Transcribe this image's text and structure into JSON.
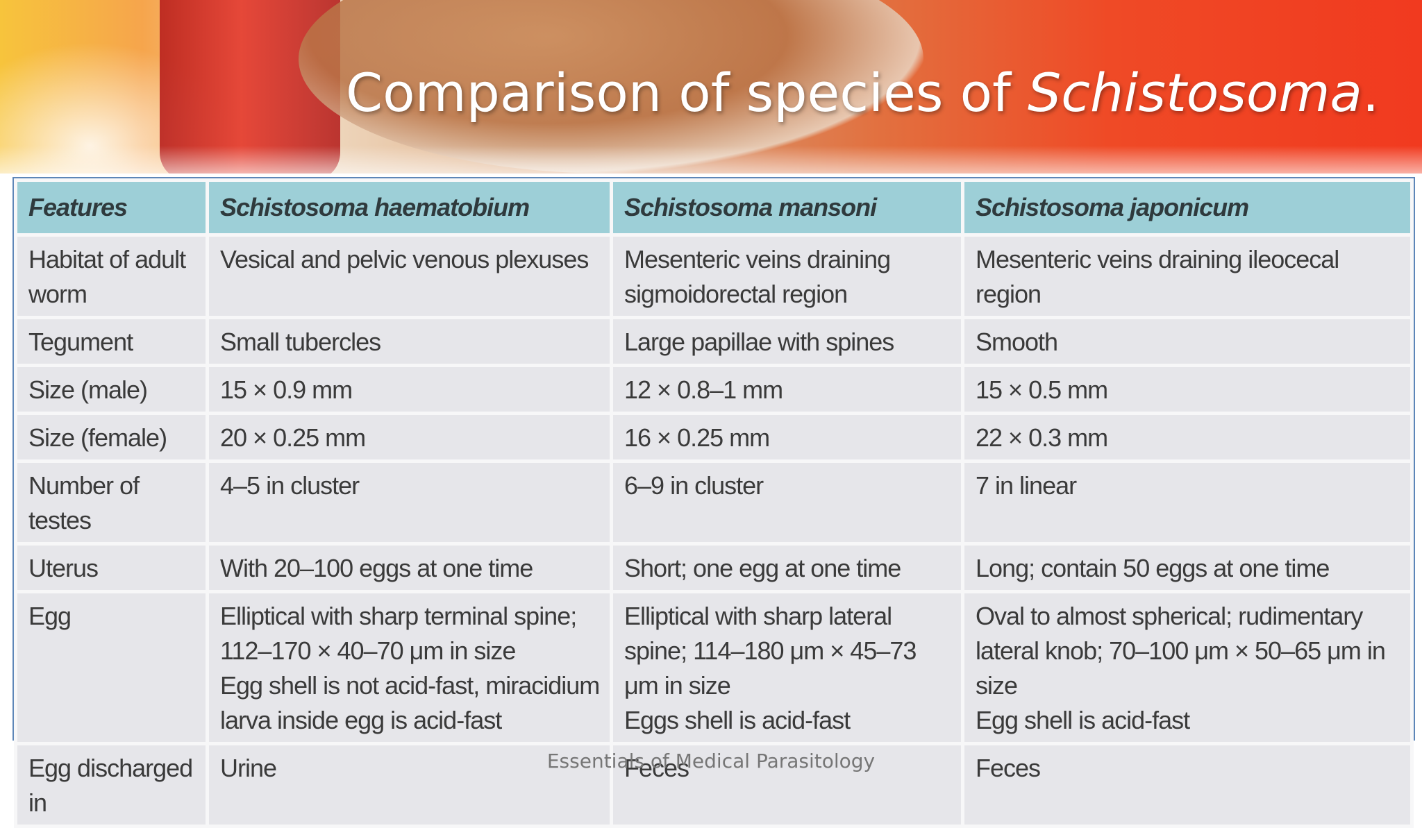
{
  "slide": {
    "title_prefix": "Comparison of species of ",
    "title_genus": "Schistosoma",
    "title_suffix": "."
  },
  "table": {
    "headers": [
      "Features",
      "Schistosoma haematobium",
      "Schistosoma mansoni",
      "Schistosoma japonicum"
    ],
    "rows": [
      {
        "feature": "Habitat of adult worm",
        "haematobium": [
          "Vesical and pelvic venous plexuses"
        ],
        "mansoni": [
          "Mesenteric veins draining sigmoidorectal region"
        ],
        "japonicum": [
          "Mesenteric veins draining ileocecal region"
        ]
      },
      {
        "feature": "Tegument",
        "haematobium": [
          "Small tubercles"
        ],
        "mansoni": [
          "Large papillae with spines"
        ],
        "japonicum": [
          "Smooth"
        ]
      },
      {
        "feature": "Size (male)",
        "haematobium": [
          "15 × 0.9 mm"
        ],
        "mansoni": [
          "12 × 0.8–1 mm"
        ],
        "japonicum": [
          "15 × 0.5 mm"
        ]
      },
      {
        "feature": "Size (female)",
        "haematobium": [
          "20 × 0.25 mm"
        ],
        "mansoni": [
          "16 × 0.25 mm"
        ],
        "japonicum": [
          "22 × 0.3 mm"
        ]
      },
      {
        "feature": "Number of testes",
        "haematobium": [
          "4–5 in cluster"
        ],
        "mansoni": [
          "6–9 in cluster"
        ],
        "japonicum": [
          "7 in linear"
        ]
      },
      {
        "feature": "Uterus",
        "haematobium": [
          "With 20–100 eggs at one time"
        ],
        "mansoni": [
          "Short; one egg at one time"
        ],
        "japonicum": [
          "Long; contain 50 eggs at one time"
        ]
      },
      {
        "feature": "Egg",
        "haematobium": [
          "Elliptical with sharp terminal spine; 112–170 × 40–70 μm in size",
          "Egg shell is not acid-fast, miracidium larva inside egg is acid-fast"
        ],
        "mansoni": [
          "Elliptical with sharp lateral spine; 114–180 μm × 45–73 μm in size",
          "Eggs shell is acid-fast"
        ],
        "japonicum": [
          "Oval to almost spherical; rudimentary lateral knob; 70–100 μm × 50–65 μm in size",
          "Egg shell is acid-fast"
        ]
      },
      {
        "feature": "Egg discharged in",
        "haematobium": [
          "Urine"
        ],
        "mansoni": [
          "Feces"
        ],
        "japonicum": [
          "Feces"
        ]
      }
    ]
  },
  "footer": {
    "credit": "Essentials of Medical Parasitology"
  },
  "colors": {
    "header_row": "#9dcfd7",
    "cell_bg": "#e6e6ea",
    "table_border": "#5d86b8",
    "text": "#3a3a3a"
  }
}
